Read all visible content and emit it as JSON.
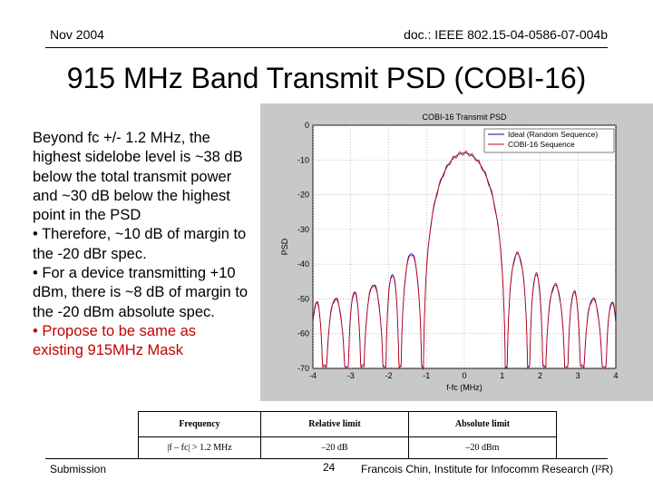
{
  "header": {
    "date": "Nov 2004",
    "doc_id": "doc.: IEEE 802.15-04-0586-07-004b"
  },
  "title": "915 MHz Band Transmit PSD (COBI-16)",
  "body": {
    "paragraph": "Beyond fc +/- 1.2 MHz, the highest sidelobe level is ~38 dB below the total transmit power and ~30 dB below the highest point in the PSD",
    "bullets": [
      "• Therefore, ~10 dB of margin to the -20 dBr spec.",
      "• For a device transmitting +10 dBm, there is ~8 dB of margin to the -20 dBm absolute spec."
    ],
    "highlight_bullet": "• Propose to be same as existing 915MHz Mask",
    "highlight_color": "#c00000"
  },
  "chart_data": {
    "type": "line",
    "title": "COBI-16 Transmit PSD",
    "xlabel": "f-fc (MHz)",
    "ylabel": "PSD",
    "xlim": [
      -4,
      4
    ],
    "ylim": [
      -70,
      0
    ],
    "xticks": [
      -4,
      -3,
      -2,
      -1,
      0,
      1,
      2,
      3,
      4
    ],
    "yticks": [
      0,
      -10,
      -20,
      -30,
      -40,
      -50,
      -60,
      -70
    ],
    "legend_position": "top-right",
    "series": [
      {
        "name": "Ideal (Random Sequence)",
        "color": "#0000cc"
      },
      {
        "name": "COBI-16 Sequence",
        "color": "#cc0000"
      }
    ],
    "main_lobe": {
      "center": 0,
      "peak": -8,
      "null_offset": 1.1
    },
    "sidelobe_peaks": [
      {
        "offset": 1.4,
        "level": -37
      },
      {
        "offset": 1.9,
        "level": -43
      },
      {
        "offset": 2.4,
        "level": -46
      },
      {
        "offset": 2.9,
        "level": -48
      },
      {
        "offset": 3.4,
        "level": -50
      },
      {
        "offset": 3.9,
        "level": -51
      }
    ]
  },
  "table": {
    "headers": [
      "Frequency",
      "Relative limit",
      "Absolute limit"
    ],
    "rows": [
      [
        "|f – fc| > 1.2 MHz",
        "–20 dB",
        "–20 dBm"
      ]
    ]
  },
  "footer": {
    "left": "Submission",
    "page": "24",
    "right": "Francois Chin, Institute for Infocomm Research (I²R)"
  }
}
